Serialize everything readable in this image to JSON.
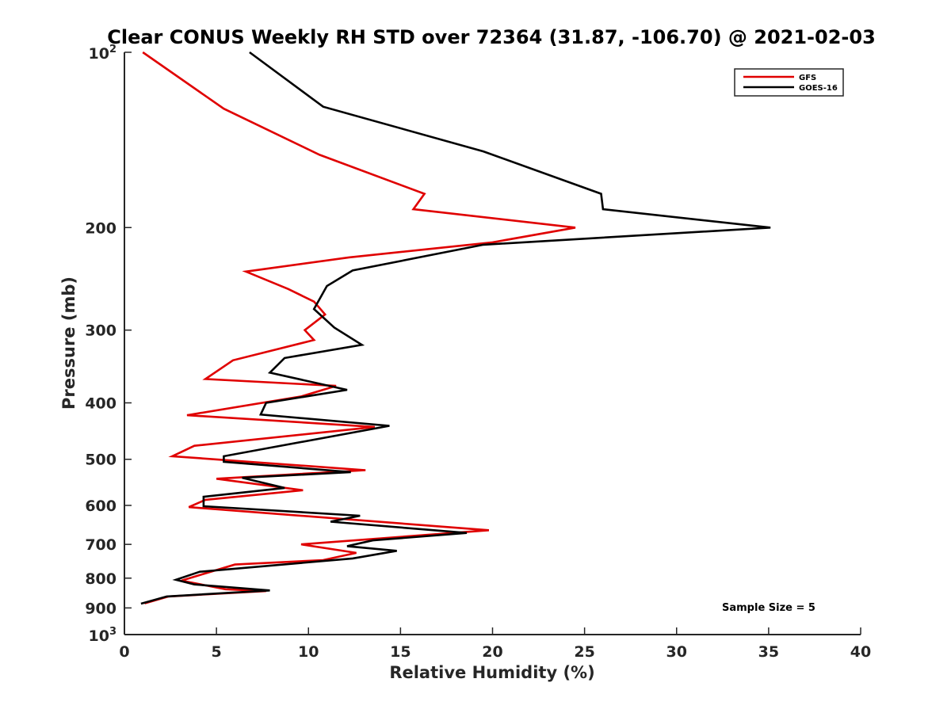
{
  "chart_data": {
    "type": "line",
    "title": "Clear CONUS Weekly RH STD over 72364 (31.87, -106.70) @ 2021-02-03",
    "xlabel": "Relative Humidity (%)",
    "ylabel": "Pressure (mb)",
    "xlim": [
      0,
      40
    ],
    "ylim": [
      100,
      1000
    ],
    "yscale": "log",
    "y_reversed": true,
    "xticks": [
      "0",
      "5",
      "10",
      "15",
      "20",
      "25",
      "30",
      "35",
      "40"
    ],
    "yticks": [
      {
        "value": 100,
        "label": "10",
        "sup": "2"
      },
      {
        "value": 200,
        "label": "200",
        "sup": ""
      },
      {
        "value": 300,
        "label": "300",
        "sup": ""
      },
      {
        "value": 400,
        "label": "400",
        "sup": ""
      },
      {
        "value": 500,
        "label": "500",
        "sup": ""
      },
      {
        "value": 600,
        "label": "600",
        "sup": ""
      },
      {
        "value": 700,
        "label": "700",
        "sup": ""
      },
      {
        "value": 800,
        "label": "800",
        "sup": ""
      },
      {
        "value": 900,
        "label": "900",
        "sup": ""
      },
      {
        "value": 1000,
        "label": "10",
        "sup": "3"
      }
    ],
    "grid": false,
    "legend_position": "top-right",
    "annotation": "Sample Size = 5",
    "series": [
      {
        "name": "GFS",
        "color": "#e00000",
        "points": [
          [
            1.0,
            100
          ],
          [
            5.4,
            125
          ],
          [
            10.6,
            150
          ],
          [
            16.3,
            175
          ],
          [
            15.7,
            186
          ],
          [
            24.5,
            200
          ],
          [
            20.0,
            212
          ],
          [
            12.2,
            225
          ],
          [
            6.6,
            238
          ],
          [
            8.9,
            255
          ],
          [
            10.3,
            268
          ],
          [
            10.9,
            282
          ],
          [
            9.8,
            300
          ],
          [
            10.3,
            312
          ],
          [
            5.9,
            338
          ],
          [
            4.4,
            364
          ],
          [
            11.5,
            374
          ],
          [
            9.6,
            390
          ],
          [
            3.4,
            420
          ],
          [
            13.6,
            440
          ],
          [
            3.8,
            474
          ],
          [
            2.6,
            494
          ],
          [
            13.1,
            522
          ],
          [
            5.0,
            540
          ],
          [
            9.7,
            565
          ],
          [
            4.4,
            587
          ],
          [
            3.5,
            604
          ],
          [
            19.8,
            662
          ],
          [
            9.6,
            700
          ],
          [
            12.6,
            724
          ],
          [
            10.8,
            745
          ],
          [
            6.0,
            758
          ],
          [
            4.4,
            785
          ],
          [
            3.1,
            808
          ],
          [
            5.5,
            836
          ],
          [
            7.7,
            842
          ],
          [
            2.4,
            860
          ],
          [
            1.1,
            884
          ]
        ]
      },
      {
        "name": "GOES-16",
        "color": "#000000",
        "points": [
          [
            6.8,
            100
          ],
          [
            10.8,
            124
          ],
          [
            19.5,
            148
          ],
          [
            25.9,
            175
          ],
          [
            26.0,
            186
          ],
          [
            35.1,
            200
          ],
          [
            19.5,
            214
          ],
          [
            12.4,
            237
          ],
          [
            11.0,
            252
          ],
          [
            10.3,
            276
          ],
          [
            11.4,
            297
          ],
          [
            12.9,
            318
          ],
          [
            8.7,
            335
          ],
          [
            7.9,
            355
          ],
          [
            12.1,
            380
          ],
          [
            7.7,
            400
          ],
          [
            7.4,
            419
          ],
          [
            14.4,
            438
          ],
          [
            5.4,
            494
          ],
          [
            5.4,
            505
          ],
          [
            12.3,
            526
          ],
          [
            6.4,
            538
          ],
          [
            8.7,
            560
          ],
          [
            4.3,
            580
          ],
          [
            4.3,
            602
          ],
          [
            12.8,
            625
          ],
          [
            11.2,
            640
          ],
          [
            18.6,
            669
          ],
          [
            13.5,
            689
          ],
          [
            12.1,
            705
          ],
          [
            14.8,
            718
          ],
          [
            12.4,
            740
          ],
          [
            4.1,
            780
          ],
          [
            2.8,
            805
          ],
          [
            3.8,
            820
          ],
          [
            7.9,
            840
          ],
          [
            2.3,
            860
          ],
          [
            0.9,
            885
          ]
        ]
      }
    ]
  }
}
